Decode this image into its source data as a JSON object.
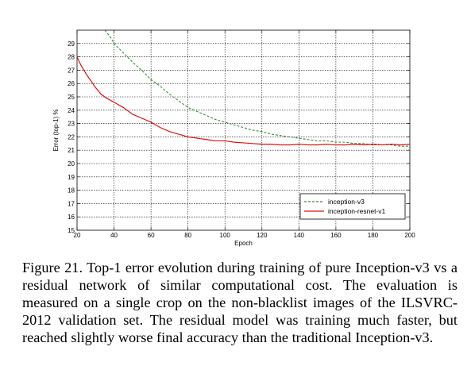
{
  "chart_data": {
    "type": "line",
    "xlabel": "Epoch",
    "ylabel": "Error (top-1) %",
    "xlim": [
      20,
      200
    ],
    "ylim": [
      15,
      30
    ],
    "xticks": [
      20,
      40,
      60,
      80,
      100,
      120,
      140,
      160,
      180,
      200
    ],
    "yticks": [
      15,
      16,
      17,
      18,
      19,
      20,
      21,
      22,
      23,
      24,
      25,
      26,
      27,
      28,
      29
    ],
    "xtick_labels": [
      "20",
      "40",
      "60",
      "80",
      "100",
      "120",
      "140",
      "160",
      "180",
      "200"
    ],
    "ytick_labels": [
      "15",
      "16",
      "17",
      "18",
      "19",
      "20",
      "21",
      "22",
      "23",
      "24",
      "25",
      "26",
      "27",
      "28",
      "29"
    ],
    "grid": true,
    "legend_position": "bottom-right",
    "series": [
      {
        "name": "inception-v3",
        "color": "#3a8a3a",
        "style": "dashed",
        "x": [
          35,
          38,
          40,
          45,
          50,
          55,
          60,
          65,
          70,
          75,
          80,
          85,
          90,
          95,
          100,
          105,
          110,
          115,
          120,
          125,
          130,
          135,
          140,
          145,
          150,
          155,
          160,
          165,
          170,
          175,
          180,
          185,
          190,
          195,
          200
        ],
        "y": [
          30.0,
          29.5,
          29.0,
          28.3,
          27.6,
          27.0,
          26.3,
          25.8,
          25.2,
          24.7,
          24.2,
          23.9,
          23.6,
          23.3,
          23.1,
          22.9,
          22.7,
          22.5,
          22.4,
          22.2,
          22.1,
          22.0,
          21.9,
          21.8,
          21.7,
          21.7,
          21.6,
          21.6,
          21.5,
          21.5,
          21.4,
          21.4,
          21.4,
          21.3,
          21.3
        ]
      },
      {
        "name": "inception-resnet-v1",
        "color": "#e01010",
        "style": "solid",
        "x": [
          20,
          22,
          25,
          28,
          30,
          33,
          36,
          40,
          45,
          50,
          55,
          60,
          65,
          70,
          75,
          80,
          85,
          90,
          95,
          100,
          105,
          110,
          115,
          120,
          125,
          130,
          135,
          140,
          145,
          150,
          155,
          160,
          165,
          170,
          175,
          180,
          185,
          190,
          195,
          200
        ],
        "y": [
          28.0,
          27.4,
          26.7,
          26.1,
          25.7,
          25.2,
          24.9,
          24.6,
          24.2,
          23.7,
          23.4,
          23.1,
          22.7,
          22.4,
          22.2,
          22.0,
          21.9,
          21.8,
          21.7,
          21.7,
          21.6,
          21.55,
          21.5,
          21.45,
          21.45,
          21.4,
          21.4,
          21.45,
          21.4,
          21.4,
          21.45,
          21.4,
          21.4,
          21.45,
          21.4,
          21.45,
          21.4,
          21.45,
          21.4,
          21.45
        ]
      }
    ]
  },
  "caption": {
    "text": "Figure 21. Top-1 error evolution during training of pure Inception-v3 vs a residual network of similar computational cost. The evaluation is measured on a single crop on the non-blacklist images of the ILSVRC-2012 validation set. The residual model was training much faster, but reached slightly worse final accuracy than the traditional Inception-v3."
  }
}
